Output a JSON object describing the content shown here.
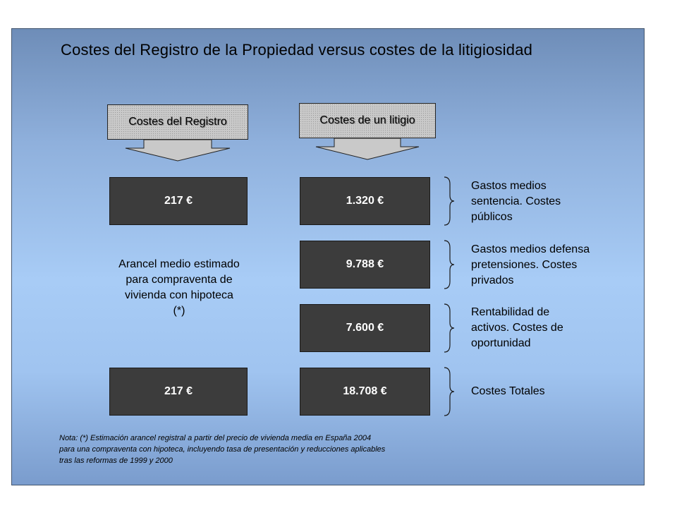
{
  "title": "Costes del Registro de la Propiedad versus costes de la litigiosidad",
  "headers": {
    "registro": "Costes del Registro",
    "litigio": "Costes de un litigio"
  },
  "registro_values": {
    "top": "217 €",
    "total": "217 €"
  },
  "registro_description": "Arancel medio estimado para compraventa de vivienda con hipoteca (*)",
  "litigio_rows": [
    {
      "value": "1.320 €",
      "description": [
        "Gastos medios",
        "sentencia. Costes",
        "públicos"
      ]
    },
    {
      "value": "9.788 €",
      "description": [
        "Gastos medios defensa",
        "pretensiones. Costes",
        "privados"
      ]
    },
    {
      "value": "7.600 €",
      "description": [
        "Rentabilidad de",
        "activos. Costes de",
        "oportunidad"
      ]
    },
    {
      "value": "18.708 €",
      "description": [
        "Costes Totales"
      ]
    }
  ],
  "note_lines": [
    "Nota: (*) Estimación arancel registral a partir del precio de vivienda media en España 2004",
    "para una compraventa con hipoteca, incluyendo tasa de presentación y reducciones aplicables",
    "tras las reformas de 1999 y 2000"
  ],
  "colors": {
    "box_fill": "#3c3c3c",
    "header_fill": "#c9c9c9",
    "panel_top": "#6e8db8",
    "panel_mid": "#a8ccf6"
  }
}
